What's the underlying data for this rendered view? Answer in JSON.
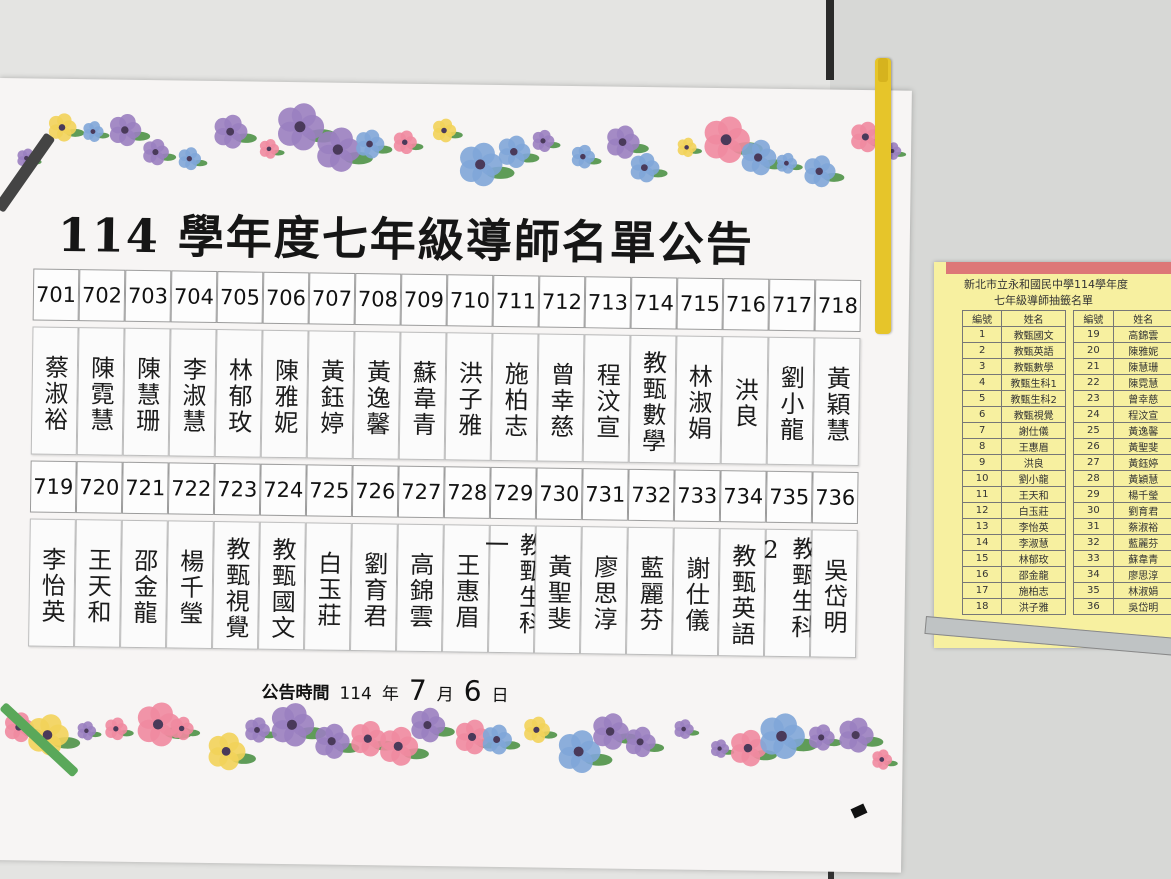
{
  "poster": {
    "title": "114 學年度七年級導師名單公告",
    "row1": [
      {
        "num": "701",
        "name": "蔡淑裕"
      },
      {
        "num": "702",
        "name": "陳霓慧"
      },
      {
        "num": "703",
        "name": "陳慧珊"
      },
      {
        "num": "704",
        "name": "李淑慧"
      },
      {
        "num": "705",
        "name": "林郁玫"
      },
      {
        "num": "706",
        "name": "陳雅妮"
      },
      {
        "num": "707",
        "name": "黃鈺婷"
      },
      {
        "num": "708",
        "name": "黃逸馨"
      },
      {
        "num": "709",
        "name": "蘇韋青"
      },
      {
        "num": "710",
        "name": "洪子雅"
      },
      {
        "num": "711",
        "name": "施柏志"
      },
      {
        "num": "712",
        "name": "曾幸慈"
      },
      {
        "num": "713",
        "name": "程汶宣"
      },
      {
        "num": "714",
        "name": "教甄數學"
      },
      {
        "num": "715",
        "name": "林淑娟"
      },
      {
        "num": "716",
        "name": "洪良"
      },
      {
        "num": "717",
        "name": "劉小龍"
      },
      {
        "num": "718",
        "name": "黃穎慧"
      }
    ],
    "row2": [
      {
        "num": "719",
        "name": "李怡英"
      },
      {
        "num": "720",
        "name": "王天和"
      },
      {
        "num": "721",
        "name": "邵金龍"
      },
      {
        "num": "722",
        "name": "楊千瑩"
      },
      {
        "num": "723",
        "name": "教甄視覺"
      },
      {
        "num": "724",
        "name": "教甄國文"
      },
      {
        "num": "725",
        "name": "白玉莊"
      },
      {
        "num": "726",
        "name": "劉育君"
      },
      {
        "num": "727",
        "name": "高錦雲"
      },
      {
        "num": "728",
        "name": "王惠眉"
      },
      {
        "num": "729",
        "name": "教甄生科一"
      },
      {
        "num": "730",
        "name": "黃聖斐"
      },
      {
        "num": "731",
        "name": "廖思淳"
      },
      {
        "num": "732",
        "name": "藍麗芬"
      },
      {
        "num": "733",
        "name": "謝仕儀"
      },
      {
        "num": "734",
        "name": "教甄英語"
      },
      {
        "num": "735",
        "name": "教甄生科2"
      },
      {
        "num": "736",
        "name": "吳岱明"
      }
    ],
    "announce": {
      "label": "公告時間",
      "year": "114",
      "year_unit": "年",
      "month": "7",
      "month_unit": "月",
      "day": "6",
      "day_unit": "日"
    }
  },
  "sheet": {
    "title": "新北市立永和國民中學114學年度",
    "subtitle": "七年級導師抽籤名單",
    "col_num": "編號",
    "col_name": "姓名",
    "left": [
      {
        "n": "",
        "s": ""
      },
      {
        "n": "1",
        "s": "教甄國文"
      },
      {
        "n": "2",
        "s": "教甄英語"
      },
      {
        "n": "3",
        "s": "教甄數學"
      },
      {
        "n": "4",
        "s": "教甄生科1"
      },
      {
        "n": "5",
        "s": "教甄生科2"
      },
      {
        "n": "6",
        "s": "教甄視覺"
      },
      {
        "n": "7",
        "s": "謝仕儀"
      },
      {
        "n": "8",
        "s": "王惠眉"
      },
      {
        "n": "9",
        "s": "洪良"
      },
      {
        "n": "10",
        "s": "劉小龍"
      },
      {
        "n": "11",
        "s": "王天和"
      },
      {
        "n": "12",
        "s": "白玉莊"
      },
      {
        "n": "13",
        "s": "李怡英"
      },
      {
        "n": "14",
        "s": "李淑慧"
      },
      {
        "n": "15",
        "s": "林郁玫"
      },
      {
        "n": "16",
        "s": "邵金龍"
      },
      {
        "n": "17",
        "s": "施柏志"
      },
      {
        "n": "18",
        "s": "洪子雅"
      }
    ],
    "right": [
      {
        "n": "19",
        "s": "高錦雲"
      },
      {
        "n": "20",
        "s": "陳雅妮"
      },
      {
        "n": "21",
        "s": "陳慧珊"
      },
      {
        "n": "22",
        "s": "陳霓慧"
      },
      {
        "n": "23",
        "s": "曾幸慈"
      },
      {
        "n": "24",
        "s": "程汶宣"
      },
      {
        "n": "25",
        "s": "黃逸馨"
      },
      {
        "n": "26",
        "s": "黃聖斐"
      },
      {
        "n": "27",
        "s": "黃鈺婷"
      },
      {
        "n": "28",
        "s": "黃穎慧"
      },
      {
        "n": "29",
        "s": "楊千瑩"
      },
      {
        "n": "30",
        "s": "劉育君"
      },
      {
        "n": "31",
        "s": "蔡淑裕"
      },
      {
        "n": "32",
        "s": "藍麗芬"
      },
      {
        "n": "33",
        "s": "蘇韋青"
      },
      {
        "n": "34",
        "s": "廖思淳"
      },
      {
        "n": "35",
        "s": "林淑娟"
      },
      {
        "n": "36",
        "s": "吳岱明"
      },
      {
        "n": "",
        "s": ""
      }
    ]
  },
  "colors": {
    "flower_pink": "#f08aa0",
    "flower_purple": "#9a7fc0",
    "flower_yellow": "#f2d35a",
    "flower_blue": "#7fa6d8",
    "leaf_green": "#5f9c58"
  }
}
